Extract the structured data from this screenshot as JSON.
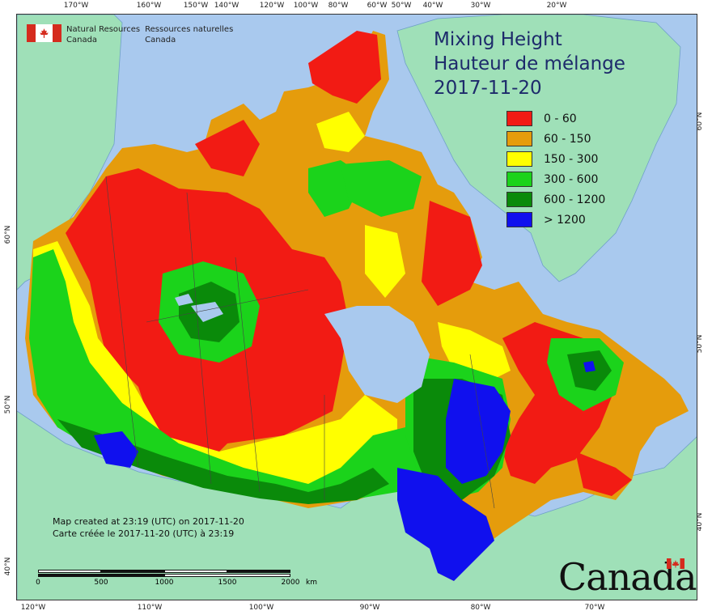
{
  "map": {
    "title_en": "Mixing Height",
    "title_fr": "Hauteur de mélange",
    "date": "2017-11-20",
    "agency_en_line1": "Natural Resources",
    "agency_en_line2": "Canada",
    "agency_fr_line1": "Ressources naturelles",
    "agency_fr_line2": "Canada",
    "credit_en": "Map created at 23:19 (UTC) on 2017-11-20",
    "credit_fr": "Carte créée le 2017-11-20 (UTC) à 23:19",
    "wordmark": "Canada",
    "scale_labels": [
      "0",
      "500",
      "1000",
      "1500",
      "2000",
      "km"
    ],
    "top_ticks": [
      "170°W",
      "160°W",
      "150°W",
      "140°W",
      "120°W",
      "100°W",
      "80°W",
      "60°W",
      "50°W",
      "40°W",
      "30°W",
      "20°W"
    ],
    "bottom_ticks": [
      "120°W",
      "110°W",
      "100°W",
      "90°W",
      "80°W",
      "70°W"
    ],
    "left_ticks": [
      "60°N",
      "50°N",
      "40°N"
    ],
    "right_ticks": [
      "60°N",
      "50°N",
      "40°N"
    ],
    "legend": [
      {
        "label": "0 - 60",
        "color": "#f21b14"
      },
      {
        "label": "60 - 150",
        "color": "#e59c0c"
      },
      {
        "label": "150 - 300",
        "color": "#ffff00"
      },
      {
        "label": "300 - 600",
        "color": "#1bd31b"
      },
      {
        "label": "600 - 1200",
        "color": "#0a8a0a"
      },
      {
        "label": "> 1200",
        "color": "#1010ee"
      }
    ],
    "colors": {
      "ocean": "#a9c9ee",
      "foreign_land": "#9fe0b8",
      "lakes": "#a9c9ee",
      "title": "#1d2a6b",
      "flag_red": "#d52b1e"
    }
  }
}
